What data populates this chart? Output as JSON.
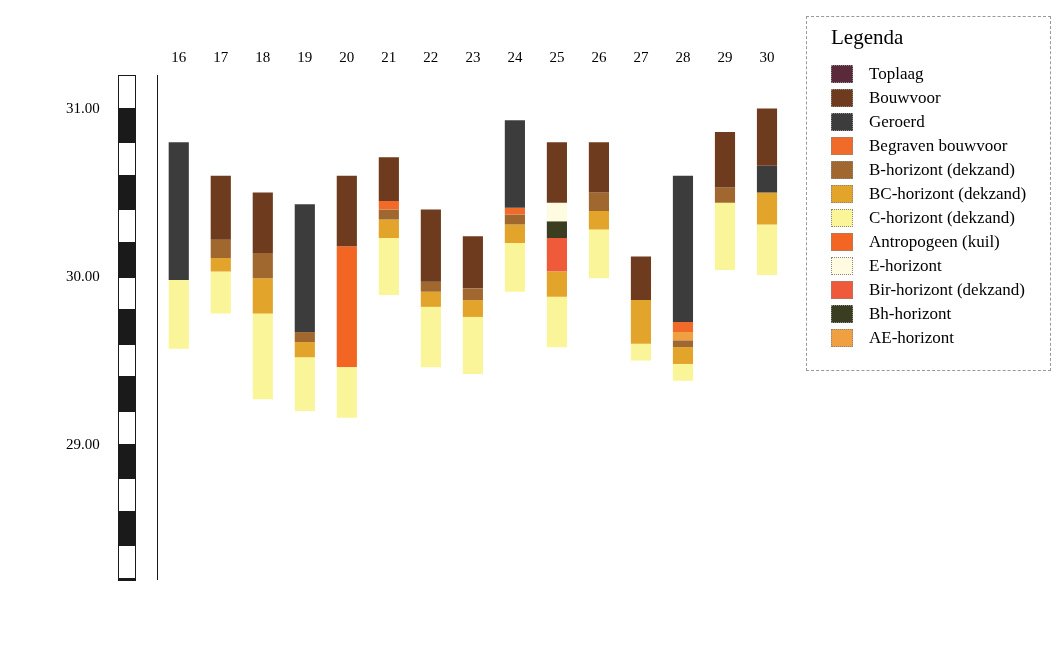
{
  "chart_data": {
    "type": "bar",
    "categories": [
      "16",
      "17",
      "18",
      "19",
      "20",
      "21",
      "22",
      "23",
      "24",
      "25",
      "26",
      "27",
      "28",
      "29",
      "30"
    ],
    "ylim": [
      28.2,
      31.2
    ],
    "yticks": [
      {
        "value": 29,
        "label": "29.00"
      },
      {
        "value": 30,
        "label": "30.00"
      },
      {
        "value": 31,
        "label": "31.00"
      }
    ],
    "grid": false,
    "legend": "right",
    "legend_title": "Legenda",
    "series": [
      {
        "name": "Toplaag",
        "color": "#5a2a3a",
        "base": [
          null,
          null,
          null,
          null,
          null,
          null,
          null,
          null,
          null,
          null,
          null,
          null,
          null,
          null,
          null
        ],
        "values": [
          null,
          null,
          null,
          null,
          null,
          null,
          null,
          null,
          null,
          null,
          null,
          null,
          null,
          null,
          null
        ]
      },
      {
        "name": "Bouwvoor",
        "color": "#6e3b1e",
        "base": [
          null,
          30.22,
          30.14,
          null,
          30.18,
          30.45,
          29.97,
          29.93,
          null,
          30.44,
          30.5,
          29.86,
          null,
          30.53,
          30.66
        ],
        "values": [
          null,
          0.38,
          0.36,
          null,
          0.42,
          0.26,
          0.43,
          0.31,
          null,
          0.36,
          0.3,
          0.26,
          null,
          0.33,
          0.34
        ]
      },
      {
        "name": "Geroerd",
        "color": "#3c3c3c",
        "base": [
          29.98,
          null,
          null,
          29.67,
          null,
          null,
          null,
          null,
          30.41,
          null,
          null,
          null,
          29.73,
          null,
          30.5
        ],
        "values": [
          0.82,
          null,
          null,
          0.76,
          null,
          null,
          null,
          null,
          0.52,
          null,
          null,
          null,
          0.87,
          null,
          0.16
        ]
      },
      {
        "name": "Begraven bouwvoor",
        "color": "#f06a2a",
        "base": [
          null,
          null,
          null,
          null,
          null,
          30.4,
          null,
          null,
          30.37,
          null,
          null,
          null,
          29.67,
          null,
          null
        ],
        "values": [
          null,
          null,
          null,
          null,
          null,
          0.05,
          null,
          null,
          0.04,
          null,
          null,
          null,
          0.06,
          null,
          null
        ]
      },
      {
        "name": "B-horizont (dekzand)",
        "color": "#a0682e",
        "base": [
          null,
          30.11,
          29.99,
          29.61,
          null,
          30.34,
          29.91,
          29.86,
          30.31,
          null,
          30.39,
          null,
          29.58,
          30.44,
          null
        ],
        "values": [
          null,
          0.11,
          0.15,
          0.06,
          null,
          0.06,
          0.06,
          0.07,
          0.06,
          null,
          0.11,
          null,
          0.04,
          0.09,
          null
        ]
      },
      {
        "name": "BC-horizont (dekzand)",
        "color": "#e2a42a",
        "base": [
          null,
          30.03,
          29.78,
          29.52,
          null,
          30.23,
          29.82,
          29.76,
          30.2,
          29.88,
          30.28,
          29.6,
          29.48,
          null,
          30.31
        ],
        "values": [
          null,
          0.08,
          0.21,
          0.09,
          null,
          0.11,
          0.09,
          0.1,
          0.11,
          0.15,
          0.11,
          0.26,
          0.1,
          null,
          0.19
        ]
      },
      {
        "name": "C-horizont (dekzand)",
        "color": "#fbf59a",
        "base": [
          29.57,
          29.78,
          29.27,
          29.2,
          29.16,
          29.89,
          29.46,
          29.42,
          29.91,
          29.58,
          29.99,
          29.5,
          29.38,
          30.04,
          30.01
        ],
        "values": [
          0.41,
          0.25,
          0.51,
          0.32,
          0.3,
          0.34,
          0.36,
          0.34,
          0.29,
          0.3,
          0.29,
          0.1,
          0.1,
          0.4,
          0.3
        ]
      },
      {
        "name": "Antropogeen (kuil)",
        "color": "#f26522",
        "base": [
          null,
          null,
          null,
          null,
          29.46,
          null,
          null,
          null,
          null,
          null,
          null,
          null,
          null,
          null,
          null
        ],
        "values": [
          null,
          null,
          null,
          null,
          0.72,
          null,
          null,
          null,
          null,
          null,
          null,
          null,
          null,
          null,
          null
        ]
      },
      {
        "name": "E-horizont",
        "color": "#fffbe0",
        "base": [
          null,
          null,
          null,
          null,
          null,
          null,
          null,
          null,
          null,
          30.33,
          null,
          null,
          null,
          null,
          null
        ],
        "values": [
          null,
          null,
          null,
          null,
          null,
          null,
          null,
          null,
          null,
          0.11,
          null,
          null,
          null,
          null,
          null
        ]
      },
      {
        "name": "Bir-horizont (dekzand)",
        "color": "#ee5a3a",
        "base": [
          null,
          null,
          null,
          null,
          null,
          null,
          null,
          null,
          null,
          30.03,
          null,
          null,
          null,
          null,
          null
        ],
        "values": [
          null,
          null,
          null,
          null,
          null,
          null,
          null,
          null,
          null,
          0.2,
          null,
          null,
          null,
          null,
          null
        ]
      },
      {
        "name": "Bh-horizont",
        "color": "#3a3d20",
        "base": [
          null,
          null,
          null,
          null,
          null,
          null,
          null,
          null,
          null,
          30.23,
          null,
          null,
          null,
          null,
          null
        ],
        "values": [
          null,
          null,
          null,
          null,
          null,
          null,
          null,
          null,
          null,
          0.1,
          null,
          null,
          null,
          null,
          null
        ]
      },
      {
        "name": "AE-horizont",
        "color": "#f0a040",
        "base": [
          null,
          null,
          null,
          null,
          null,
          null,
          null,
          null,
          null,
          null,
          null,
          null,
          29.62,
          null,
          null
        ],
        "values": [
          null,
          null,
          null,
          null,
          null,
          null,
          null,
          null,
          null,
          null,
          null,
          null,
          0.05,
          null,
          null
        ]
      }
    ]
  }
}
